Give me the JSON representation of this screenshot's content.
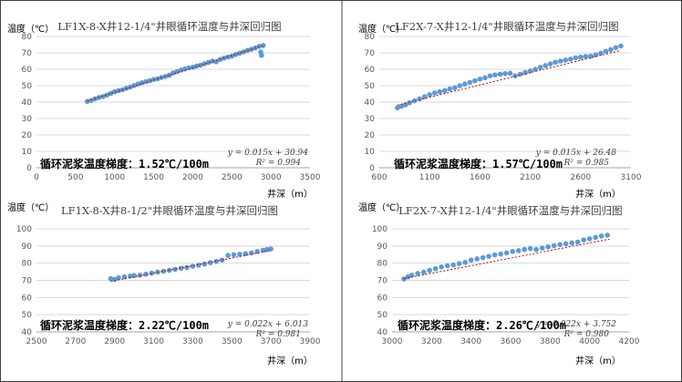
{
  "chart_data": [
    {
      "type": "scatter",
      "title": "LF1X-8-X井12-1/4\"井眼循环温度与井深回归图",
      "ylabel": "温度（℃）",
      "xlabel": "井深（m）",
      "xlim": [
        0,
        3500
      ],
      "ylim": [
        0,
        80
      ],
      "xticks": [
        0,
        500,
        1000,
        1500,
        2000,
        2500,
        3000,
        3500
      ],
      "yticks": [
        0,
        10,
        20,
        30,
        40,
        50,
        60,
        70,
        80
      ],
      "x_tick_labels": [
        "0",
        "500",
        "1000",
        "1500",
        "2000",
        "2500",
        "3000",
        "3500"
      ],
      "y_tick_labels": [
        "0",
        "10",
        "20",
        "30",
        "40",
        "50",
        "60",
        "70",
        "80"
      ],
      "trend": {
        "slope": 0.015,
        "intercept": 30.94,
        "x_range": [
          650,
          2900
        ]
      },
      "equation_lines": [
        "y = 0.015x + 30.94",
        "R² = 0.994"
      ],
      "note": "循环泥浆温度梯度：1.52℃/100m",
      "points": [
        [
          650,
          40.4
        ],
        [
          700,
          41.0
        ],
        [
          750,
          42.0
        ],
        [
          800,
          42.8
        ],
        [
          850,
          43.4
        ],
        [
          900,
          44.3
        ],
        [
          950,
          45.3
        ],
        [
          1000,
          46.3
        ],
        [
          1050,
          47.0
        ],
        [
          1100,
          47.5
        ],
        [
          1150,
          48.4
        ],
        [
          1200,
          49.2
        ],
        [
          1250,
          50.1
        ],
        [
          1300,
          51.0
        ],
        [
          1350,
          51.8
        ],
        [
          1400,
          52.5
        ],
        [
          1450,
          53.0
        ],
        [
          1500,
          53.8
        ],
        [
          1550,
          54.2
        ],
        [
          1600,
          55.0
        ],
        [
          1650,
          55.6
        ],
        [
          1700,
          56.4
        ],
        [
          1750,
          57.8
        ],
        [
          1800,
          58.6
        ],
        [
          1850,
          59.5
        ],
        [
          1900,
          60.2
        ],
        [
          1950,
          60.8
        ],
        [
          2000,
          61.2
        ],
        [
          2050,
          62.0
        ],
        [
          2100,
          62.5
        ],
        [
          2150,
          63.4
        ],
        [
          2200,
          64.2
        ],
        [
          2250,
          65.0
        ],
        [
          2300,
          64.6
        ],
        [
          2350,
          66.0
        ],
        [
          2400,
          66.8
        ],
        [
          2450,
          67.5
        ],
        [
          2500,
          68.0
        ],
        [
          2550,
          69.0
        ],
        [
          2600,
          69.8
        ],
        [
          2650,
          70.6
        ],
        [
          2700,
          71.5
        ],
        [
          2750,
          72.2
        ],
        [
          2800,
          73.0
        ],
        [
          2850,
          74.0
        ],
        [
          2870,
          70.5
        ],
        [
          2880,
          68.5
        ],
        [
          2900,
          74.5
        ]
      ]
    },
    {
      "type": "scatter",
      "title": "LF2X-7-X井12-1/4\"井眼循环温度与井深回归图",
      "ylabel": "温度（℃）",
      "xlabel": "井深（m）",
      "xlim": [
        600,
        3100
      ],
      "ylim": [
        0,
        80
      ],
      "xticks": [
        600,
        1100,
        1600,
        2100,
        2600,
        3100
      ],
      "yticks": [
        0,
        10,
        20,
        30,
        40,
        50,
        60,
        70,
        80
      ],
      "x_tick_labels": [
        "600",
        "1100",
        "1600",
        "2100",
        "2600",
        "3100"
      ],
      "y_tick_labels": [
        "0",
        "10",
        "20",
        "30",
        "40",
        "50",
        "60",
        "70",
        "80"
      ],
      "trend": {
        "slope": 0.015,
        "intercept": 26.48,
        "x_range": [
          780,
          3000
        ]
      },
      "equation_lines": [
        "y = 0.015x + 26.48",
        "R² = 0.985"
      ],
      "note": "循环泥浆温度梯度：1.57℃/100m",
      "points": [
        [
          780,
          36.5
        ],
        [
          820,
          37.5
        ],
        [
          860,
          38.3
        ],
        [
          900,
          39.6
        ],
        [
          950,
          40.8
        ],
        [
          1000,
          42.0
        ],
        [
          1050,
          43.3
        ],
        [
          1100,
          44.5
        ],
        [
          1150,
          45.6
        ],
        [
          1200,
          46.3
        ],
        [
          1250,
          47.0
        ],
        [
          1300,
          48.0
        ],
        [
          1350,
          48.8
        ],
        [
          1400,
          50.0
        ],
        [
          1450,
          51.0
        ],
        [
          1500,
          52.0
        ],
        [
          1550,
          53.0
        ],
        [
          1600,
          54.0
        ],
        [
          1650,
          54.8
        ],
        [
          1700,
          56.0
        ],
        [
          1750,
          56.6
        ],
        [
          1800,
          57.0
        ],
        [
          1850,
          57.4
        ],
        [
          1900,
          57.6
        ],
        [
          1950,
          56.0
        ],
        [
          2000,
          57.0
        ],
        [
          2050,
          58.0
        ],
        [
          2100,
          59.0
        ],
        [
          2150,
          60.0
        ],
        [
          2200,
          61.2
        ],
        [
          2250,
          62.3
        ],
        [
          2300,
          63.3
        ],
        [
          2350,
          64.3
        ],
        [
          2400,
          65.0
        ],
        [
          2450,
          65.6
        ],
        [
          2500,
          66.2
        ],
        [
          2550,
          67.0
        ],
        [
          2600,
          67.4
        ],
        [
          2650,
          67.8
        ],
        [
          2700,
          68.0
        ],
        [
          2750,
          68.8
        ],
        [
          2800,
          69.8
        ],
        [
          2850,
          71.0
        ],
        [
          2900,
          72.0
        ],
        [
          2950,
          73.2
        ],
        [
          3000,
          74.2
        ]
      ]
    },
    {
      "type": "scatter",
      "title": "LF1X-8-X井8-1/2\"井眼循环温度与井深回归图",
      "ylabel": "温度（℃）",
      "xlabel": "井深（m）",
      "xlim": [
        2500,
        3900
      ],
      "ylim": [
        40,
        100
      ],
      "xticks": [
        2500,
        2700,
        2900,
        3100,
        3300,
        3500,
        3700,
        3900
      ],
      "yticks": [
        40,
        50,
        60,
        70,
        80,
        90,
        100
      ],
      "x_tick_labels": [
        "2500",
        "2700",
        "2900",
        "3100",
        "3300",
        "3500",
        "3700",
        "3900"
      ],
      "y_tick_labels": [
        "40",
        "50",
        "60",
        "70",
        "80",
        "90",
        "100"
      ],
      "trend": {
        "slope": 0.022,
        "intercept": 6.013,
        "x_range": [
          2880,
          3700
        ]
      },
      "equation_lines": [
        "y = 0.022x + 6.013",
        "R² = 0.981"
      ],
      "note": "循环泥浆温度梯度：2.22℃/100m",
      "points": [
        [
          2880,
          71.0
        ],
        [
          2900,
          70.5
        ],
        [
          2920,
          71.5
        ],
        [
          2950,
          72.0
        ],
        [
          2980,
          72.5
        ],
        [
          3000,
          72.8
        ],
        [
          3030,
          73.0
        ],
        [
          3060,
          73.6
        ],
        [
          3090,
          74.2
        ],
        [
          3120,
          74.8
        ],
        [
          3150,
          75.3
        ],
        [
          3180,
          75.8
        ],
        [
          3210,
          76.4
        ],
        [
          3240,
          77.0
        ],
        [
          3270,
          77.5
        ],
        [
          3300,
          78.2
        ],
        [
          3330,
          78.8
        ],
        [
          3360,
          79.5
        ],
        [
          3390,
          80.3
        ],
        [
          3420,
          81.0
        ],
        [
          3450,
          81.8
        ],
        [
          3480,
          84.5
        ],
        [
          3510,
          85.0
        ],
        [
          3540,
          85.2
        ],
        [
          3570,
          85.5
        ],
        [
          3600,
          86.0
        ],
        [
          3630,
          86.8
        ],
        [
          3660,
          87.5
        ],
        [
          3680,
          88.0
        ],
        [
          3700,
          88.3
        ]
      ]
    },
    {
      "type": "scatter",
      "title": "LF2X-7-X井12-1/4\"井眼循环温度与井深回归图",
      "ylabel": "温度（℃）",
      "xlabel": "井深（m）",
      "xlim": [
        3000,
        4200
      ],
      "ylim": [
        40,
        100
      ],
      "xticks": [
        3000,
        3200,
        3400,
        3600,
        3800,
        4000,
        4200
      ],
      "yticks": [
        40,
        50,
        60,
        70,
        80,
        90,
        100
      ],
      "x_tick_labels": [
        "3000",
        "3200",
        "3400",
        "3600",
        "3800",
        "4000",
        "4200"
      ],
      "y_tick_labels": [
        "40",
        "50",
        "60",
        "70",
        "80",
        "90",
        "100"
      ],
      "trend": {
        "slope": 0.022,
        "intercept": 3.752,
        "x_range": [
          3060,
          4100
        ]
      },
      "equation_lines": [
        "y = 0.022x + 3.752",
        "R² = 0.980"
      ],
      "note": "循环泥浆温度梯度：2.26℃/100m",
      "points": [
        [
          3060,
          70.8
        ],
        [
          3080,
          72.0
        ],
        [
          3100,
          73.0
        ],
        [
          3130,
          74.0
        ],
        [
          3160,
          74.8
        ],
        [
          3190,
          75.8
        ],
        [
          3220,
          76.8
        ],
        [
          3250,
          77.8
        ],
        [
          3280,
          78.5
        ],
        [
          3310,
          79.0
        ],
        [
          3340,
          79.8
        ],
        [
          3370,
          80.5
        ],
        [
          3400,
          81.8
        ],
        [
          3430,
          82.5
        ],
        [
          3460,
          83.2
        ],
        [
          3490,
          84.0
        ],
        [
          3520,
          84.8
        ],
        [
          3550,
          85.3
        ],
        [
          3580,
          86.0
        ],
        [
          3610,
          86.8
        ],
        [
          3640,
          87.3
        ],
        [
          3670,
          88.0
        ],
        [
          3700,
          88.5
        ],
        [
          3730,
          88.0
        ],
        [
          3760,
          88.8
        ],
        [
          3790,
          89.5
        ],
        [
          3820,
          90.2
        ],
        [
          3850,
          90.8
        ],
        [
          3880,
          91.3
        ],
        [
          3910,
          91.8
        ],
        [
          3940,
          92.3
        ],
        [
          3970,
          93.5
        ],
        [
          4000,
          94.2
        ],
        [
          4030,
          95.0
        ],
        [
          4060,
          95.8
        ],
        [
          4090,
          96.3
        ]
      ]
    }
  ],
  "colors": {
    "point": "#5b9bd5",
    "trend": "#c00000",
    "grid": "#d9d9d9",
    "frame": "#404040"
  }
}
